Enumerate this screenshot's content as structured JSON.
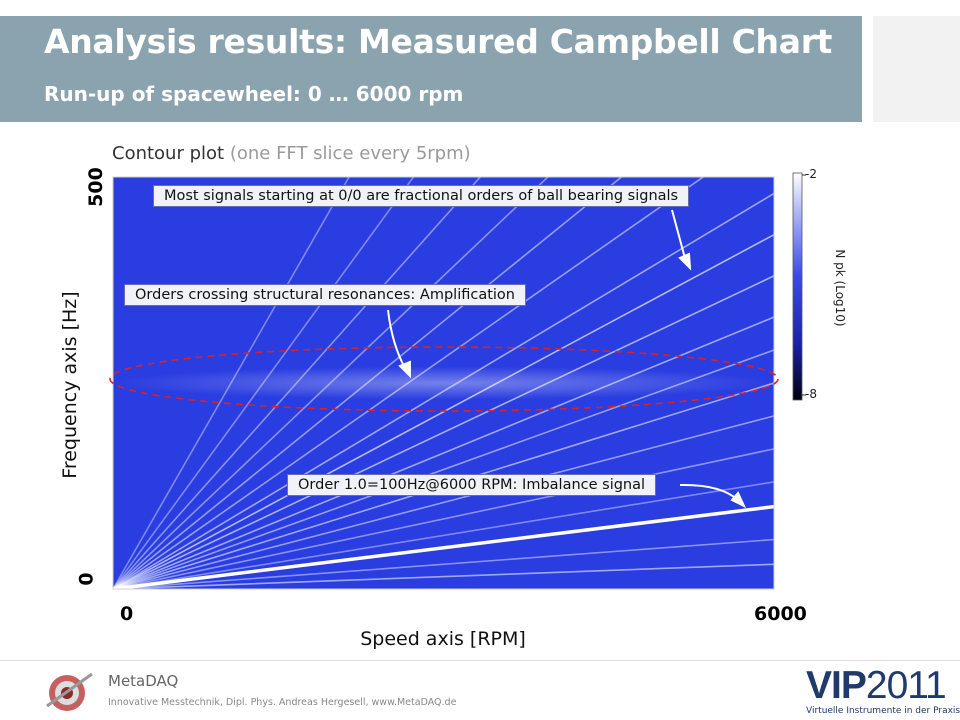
{
  "header": {
    "title": "Analysis results: Measured Campbell Chart",
    "subtitle": "Run-up of spacewheel: 0 … 6000 rpm"
  },
  "plot": {
    "caption_main": "Contour plot",
    "caption_note": "(one FFT slice every 5rpm)"
  },
  "annotations": {
    "top": "Most signals starting at 0/0 are fractional orders of ball bearing signals",
    "middle": "Orders crossing structural resonances: Amplification",
    "bottom": "Order 1.0=100Hz@6000 RPM: Imbalance signal"
  },
  "chart_data": {
    "type": "heatmap",
    "title": "Contour plot",
    "subtitle": "(one FFT slice every 5rpm)",
    "xlabel": "Speed axis [RPM]",
    "ylabel": "Frequency axis [Hz]",
    "xlim": [
      0,
      6000
    ],
    "ylim": [
      0,
      500
    ],
    "x_ticks": [
      "0",
      "6000"
    ],
    "y_ticks": [
      "0",
      "500"
    ],
    "colorbar": {
      "label": "N pk (Log10)",
      "max_label": "-2",
      "min_label": "-8",
      "range": [
        -8,
        -2
      ]
    },
    "resonance_band_hz": [
      230,
      270
    ],
    "order_lines": [
      {
        "name": "Order 1.0",
        "freq_at_6000rpm": 100,
        "strength": 1.0
      },
      {
        "freq_at_6000rpm": 30,
        "strength": 0.55
      },
      {
        "freq_at_6000rpm": 60,
        "strength": 0.45
      },
      {
        "freq_at_6000rpm": 130,
        "strength": 0.4
      },
      {
        "freq_at_6000rpm": 170,
        "strength": 0.45
      },
      {
        "freq_at_6000rpm": 210,
        "strength": 0.5
      },
      {
        "freq_at_6000rpm": 250,
        "strength": 0.55
      },
      {
        "freq_at_6000rpm": 290,
        "strength": 0.5
      },
      {
        "freq_at_6000rpm": 330,
        "strength": 0.55
      },
      {
        "freq_at_6000rpm": 380,
        "strength": 0.6
      },
      {
        "freq_at_6000rpm": 430,
        "strength": 0.65
      },
      {
        "freq_at_6000rpm": 480,
        "strength": 0.55
      },
      {
        "freq_at_6000rpm": 560,
        "strength": 0.5
      },
      {
        "freq_at_6000rpm": 650,
        "strength": 0.5
      },
      {
        "freq_at_6000rpm": 760,
        "strength": 0.45
      },
      {
        "freq_at_6000rpm": 900,
        "strength": 0.45
      },
      {
        "freq_at_6000rpm": 1100,
        "strength": 0.4
      },
      {
        "freq_at_6000rpm": 1400,
        "strength": 0.4
      }
    ]
  },
  "footer": {
    "brand": "MetaDAQ",
    "brand_sub": "Innovative Messtechnik, Dipl. Phys. Andreas Hergesell, www.MetaDAQ.de",
    "vip_bold": "VIP",
    "vip_year": "2011",
    "vip_sub": "Virtuelle Instrumente in der Praxis"
  },
  "colors": {
    "header_bg": "#8aa3af",
    "plot_bg": "#2a3de0",
    "band_ellipse": "#e02020"
  }
}
